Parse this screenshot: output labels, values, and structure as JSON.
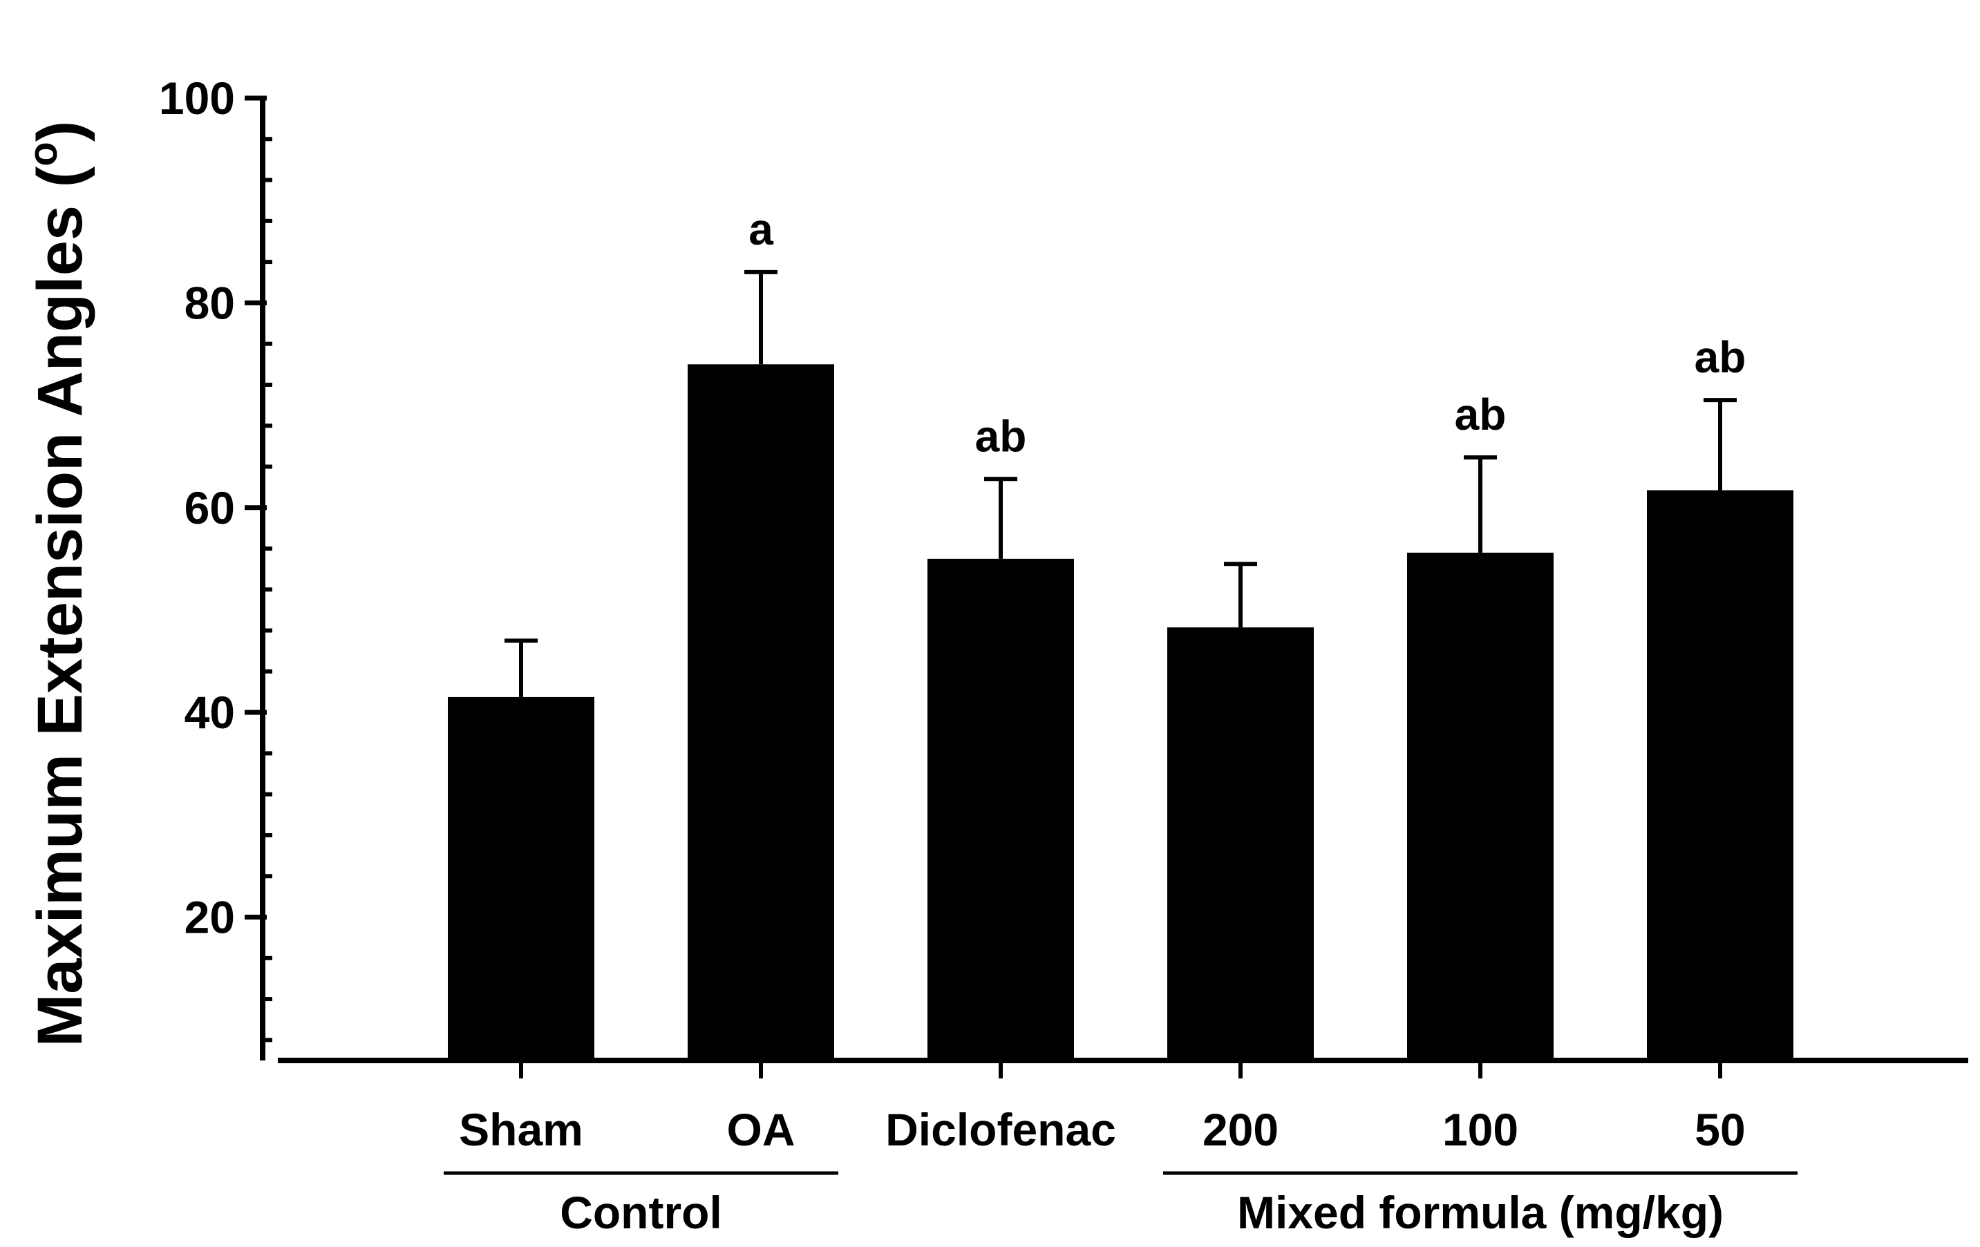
{
  "chart_data": {
    "type": "bar",
    "title": "",
    "xlabel": "",
    "ylabel": "Maximum Extension Angles (°)",
    "ylabel_parts": {
      "main": "Maximum Extension Angles (",
      "unit": "o",
      "close": ")"
    },
    "ylim": [
      6,
      100
    ],
    "yticks": [
      20,
      40,
      60,
      80,
      100
    ],
    "minor_tick_step": 4,
    "grid": false,
    "categories": [
      "Sham",
      "OA",
      "Diclofenac",
      "200",
      "100",
      "50"
    ],
    "values": [
      41.5,
      74,
      55,
      48.3,
      55.6,
      61.7
    ],
    "errors": [
      5.5,
      9,
      7.8,
      6.2,
      9.3,
      8.8
    ],
    "significance": [
      "",
      "a",
      "ab",
      "",
      "ab",
      "ab"
    ],
    "groups": [
      {
        "label": "Control",
        "from": 0,
        "to": 1
      },
      {
        "label": "Mixed formula (mg/kg)",
        "from": 3,
        "to": 5
      }
    ],
    "bar_color": "#000000"
  }
}
